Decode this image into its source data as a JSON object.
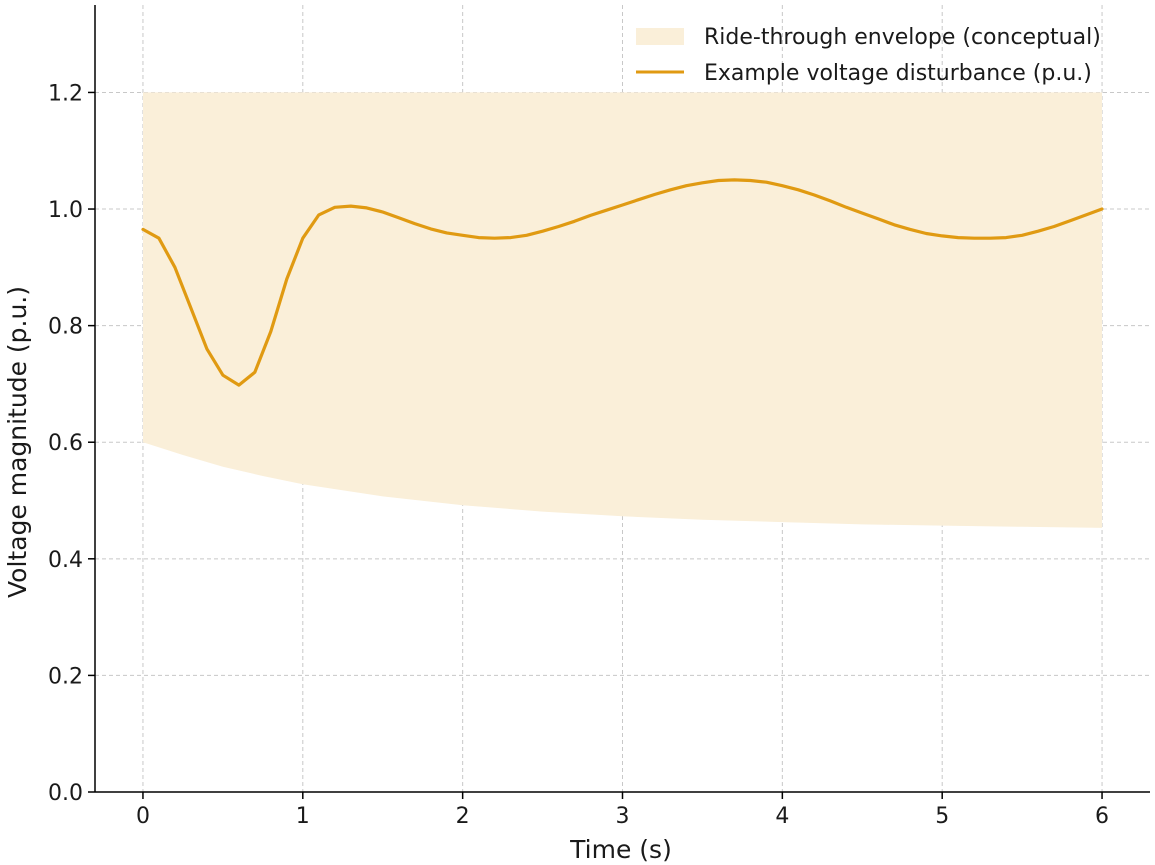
{
  "chart_data": {
    "type": "line",
    "title": "",
    "xlabel": "Time (s)",
    "ylabel": "Voltage magnitude (p.u.)",
    "xlim": [
      -0.3,
      6.3
    ],
    "ylim": [
      0.0,
      1.35
    ],
    "xticks": [
      0,
      1,
      2,
      3,
      4,
      5,
      6
    ],
    "xtick_labels": [
      "0",
      "1",
      "2",
      "3",
      "4",
      "5",
      "6"
    ],
    "yticks": [
      0.0,
      0.2,
      0.4,
      0.6,
      0.8,
      1.0,
      1.2
    ],
    "ytick_labels": [
      "0.0",
      "0.2",
      "0.4",
      "0.6",
      "0.8",
      "1.0",
      "1.2"
    ],
    "grid": true,
    "legend_position": "top-right",
    "colors": {
      "line": "#E09A12",
      "band": "#FAEFD9"
    },
    "band": {
      "name": "Ride-through envelope (conceptual)",
      "x": [
        0,
        0.25,
        0.5,
        0.75,
        1,
        1.5,
        2,
        2.5,
        3,
        3.5,
        4,
        4.5,
        5,
        5.5,
        6
      ],
      "upper": [
        1.2,
        1.2,
        1.2,
        1.2,
        1.2,
        1.2,
        1.2,
        1.2,
        1.2,
        1.2,
        1.2,
        1.2,
        1.2,
        1.2,
        1.2
      ],
      "lower": [
        0.6,
        0.578,
        0.558,
        0.542,
        0.528,
        0.507,
        0.492,
        0.481,
        0.473,
        0.467,
        0.463,
        0.459,
        0.457,
        0.455,
        0.453
      ]
    },
    "series": [
      {
        "name": "Example voltage disturbance (p.u.)",
        "x": [
          0,
          0.1,
          0.2,
          0.3,
          0.4,
          0.5,
          0.6,
          0.7,
          0.8,
          0.9,
          1.0,
          1.1,
          1.2,
          1.3,
          1.4,
          1.5,
          1.6,
          1.7,
          1.8,
          1.9,
          2.0,
          2.1,
          2.2,
          2.3,
          2.4,
          2.5,
          2.6,
          2.7,
          2.8,
          2.9,
          3.0,
          3.1,
          3.2,
          3.3,
          3.4,
          3.5,
          3.6,
          3.7,
          3.8,
          3.9,
          4.0,
          4.1,
          4.2,
          4.3,
          4.4,
          4.5,
          4.6,
          4.7,
          4.8,
          4.9,
          5.0,
          5.1,
          5.2,
          5.3,
          5.4,
          5.5,
          5.6,
          5.7,
          5.8,
          5.9,
          6.0
        ],
        "y": [
          0.965,
          0.95,
          0.9,
          0.83,
          0.76,
          0.715,
          0.698,
          0.72,
          0.79,
          0.88,
          0.95,
          0.99,
          1.003,
          1.005,
          1.002,
          0.995,
          0.985,
          0.975,
          0.966,
          0.959,
          0.955,
          0.951,
          0.95,
          0.951,
          0.955,
          0.962,
          0.97,
          0.979,
          0.989,
          0.998,
          1.007,
          1.016,
          1.025,
          1.033,
          1.04,
          1.045,
          1.049,
          1.05,
          1.049,
          1.046,
          1.04,
          1.033,
          1.024,
          1.014,
          1.003,
          0.993,
          0.983,
          0.973,
          0.965,
          0.958,
          0.954,
          0.951,
          0.95,
          0.95,
          0.951,
          0.955,
          0.962,
          0.97,
          0.98,
          0.99,
          1.0
        ]
      }
    ]
  }
}
